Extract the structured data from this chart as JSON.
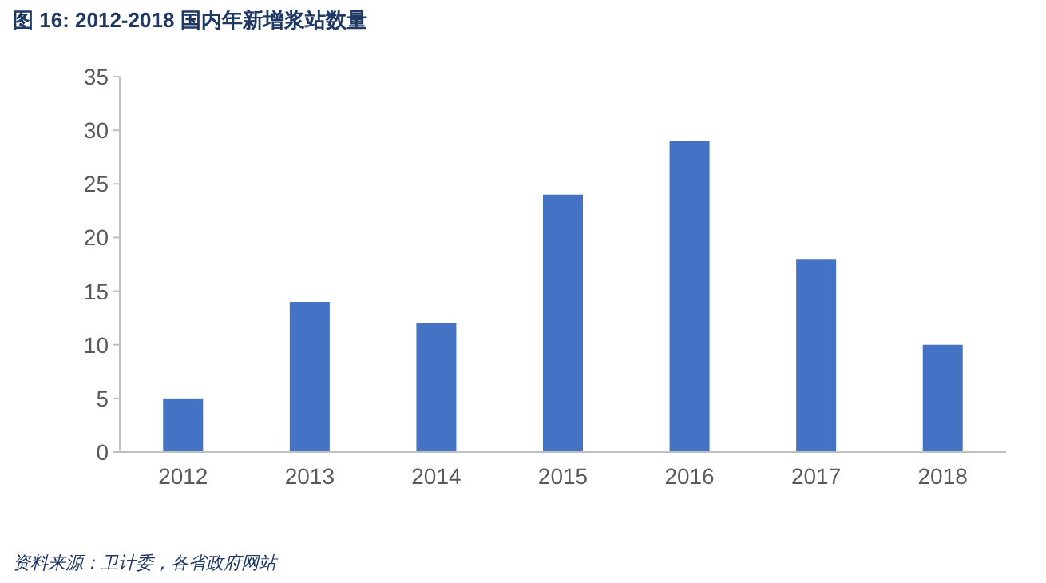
{
  "chart_data": {
    "type": "bar",
    "title": "图 16: 2012-2018 国内年新增浆站数量",
    "categories": [
      "2012",
      "2013",
      "2014",
      "2015",
      "2016",
      "2017",
      "2018"
    ],
    "values": [
      5,
      14,
      12,
      24,
      29,
      18,
      10
    ],
    "color": "#4472c4",
    "ylim": [
      0,
      35
    ],
    "yticks": [
      0,
      5,
      10,
      15,
      20,
      25,
      30,
      35
    ],
    "grid": false,
    "annotations": [
      "资料来源：卫计委，各省政府网站"
    ]
  }
}
